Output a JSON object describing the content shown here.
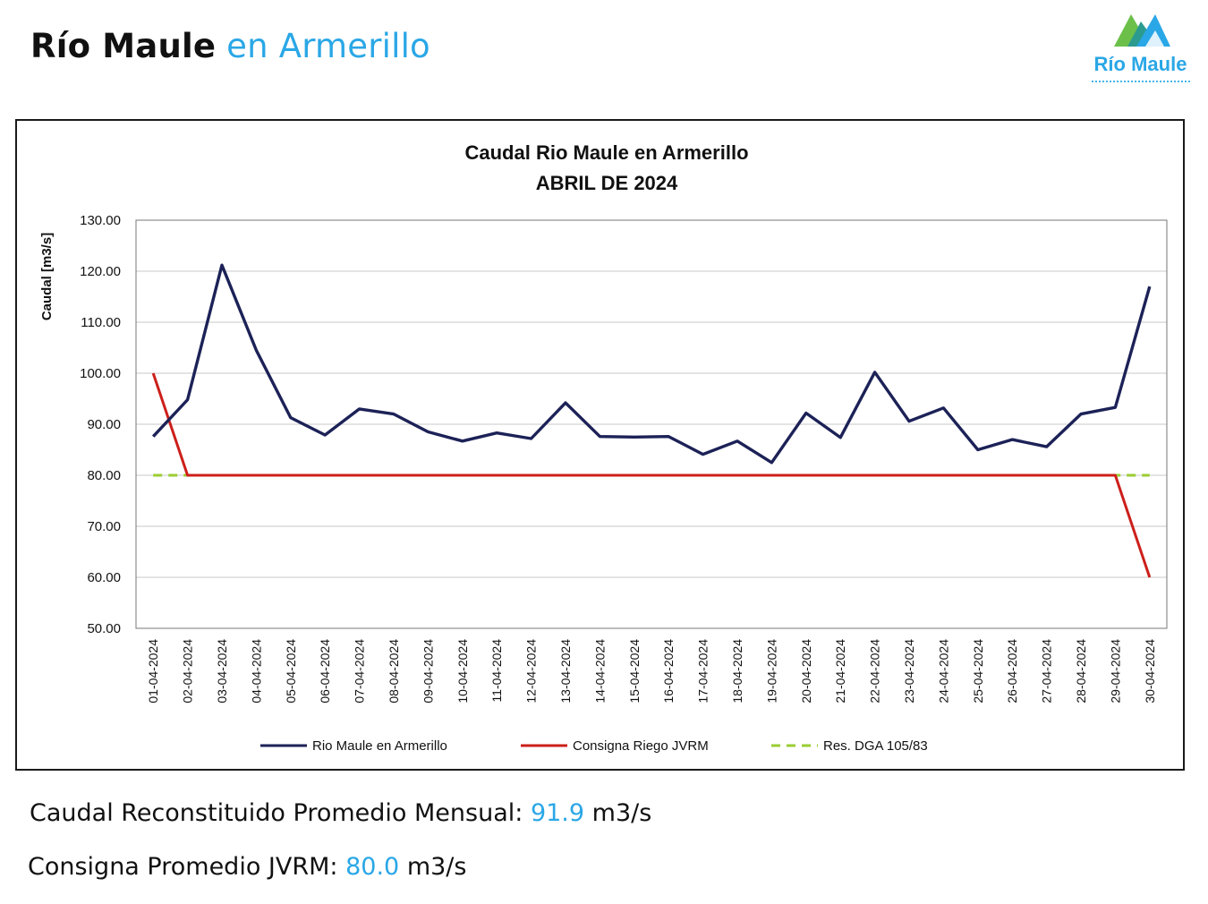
{
  "page": {
    "title_main": "Río Maule",
    "title_accent": "en Armerillo",
    "logo_text": "Río Maule"
  },
  "summary": {
    "caudal_label": "Caudal Reconstituido Promedio Mensual:",
    "caudal_value": "91.9",
    "caudal_unit": "m3/s",
    "consigna_label": "Consigna Promedio JVRM:",
    "consigna_value": "80.0",
    "consigna_unit": "m3/s"
  },
  "colors": {
    "accent": "#2aa7e6",
    "series_rio": "#1c2257",
    "series_consigna": "#cc1f1a",
    "series_dga": "#9acd32",
    "grid": "#c8c8c8"
  },
  "chart_data": {
    "type": "line",
    "title": "Caudal Rio Maule en Armerillo",
    "subtitle": "ABRIL DE 2024",
    "xlabel": "",
    "ylabel": "Caudal [m3/s]",
    "ylim": [
      50,
      130
    ],
    "yticks": [
      "50.00",
      "60.00",
      "70.00",
      "80.00",
      "90.00",
      "100.00",
      "110.00",
      "120.00",
      "130.00"
    ],
    "grid": true,
    "legend_position": "bottom",
    "categories": [
      "01-04-2024",
      "02-04-2024",
      "03-04-2024",
      "04-04-2024",
      "05-04-2024",
      "06-04-2024",
      "07-04-2024",
      "08-04-2024",
      "09-04-2024",
      "10-04-2024",
      "11-04-2024",
      "12-04-2024",
      "13-04-2024",
      "14-04-2024",
      "15-04-2024",
      "16-04-2024",
      "17-04-2024",
      "18-04-2024",
      "19-04-2024",
      "20-04-2024",
      "21-04-2024",
      "22-04-2024",
      "23-04-2024",
      "24-04-2024",
      "25-04-2024",
      "26-04-2024",
      "27-04-2024",
      "28-04-2024",
      "29-04-2024",
      "30-04-2024"
    ],
    "series": [
      {
        "name": "Rio Maule en Armerillo",
        "style": "solid",
        "color": "#1c2257",
        "values": [
          87.6,
          94.8,
          121.2,
          104.5,
          91.3,
          87.9,
          93.0,
          92.0,
          88.5,
          86.7,
          88.3,
          87.2,
          94.2,
          87.6,
          87.5,
          87.6,
          84.1,
          86.7,
          82.5,
          92.2,
          87.4,
          100.2,
          90.6,
          93.2,
          85.0,
          87.0,
          85.6,
          92.0,
          93.3,
          117.0
        ]
      },
      {
        "name": "Consigna Riego JVRM",
        "style": "solid",
        "color": "#cc1f1a",
        "values": [
          100.0,
          80.0,
          80.0,
          80.0,
          80.0,
          80.0,
          80.0,
          80.0,
          80.0,
          80.0,
          80.0,
          80.0,
          80.0,
          80.0,
          80.0,
          80.0,
          80.0,
          80.0,
          80.0,
          80.0,
          80.0,
          80.0,
          80.0,
          80.0,
          80.0,
          80.0,
          80.0,
          80.0,
          80.0,
          60.0
        ]
      },
      {
        "name": "Res. DGA 105/83",
        "style": "dashed",
        "color": "#9acd32",
        "values": [
          80.0,
          80.0,
          80.0,
          80.0,
          80.0,
          80.0,
          80.0,
          80.0,
          80.0,
          80.0,
          80.0,
          80.0,
          80.0,
          80.0,
          80.0,
          80.0,
          80.0,
          80.0,
          80.0,
          80.0,
          80.0,
          80.0,
          80.0,
          80.0,
          80.0,
          80.0,
          80.0,
          80.0,
          80.0,
          80.0
        ]
      }
    ]
  }
}
